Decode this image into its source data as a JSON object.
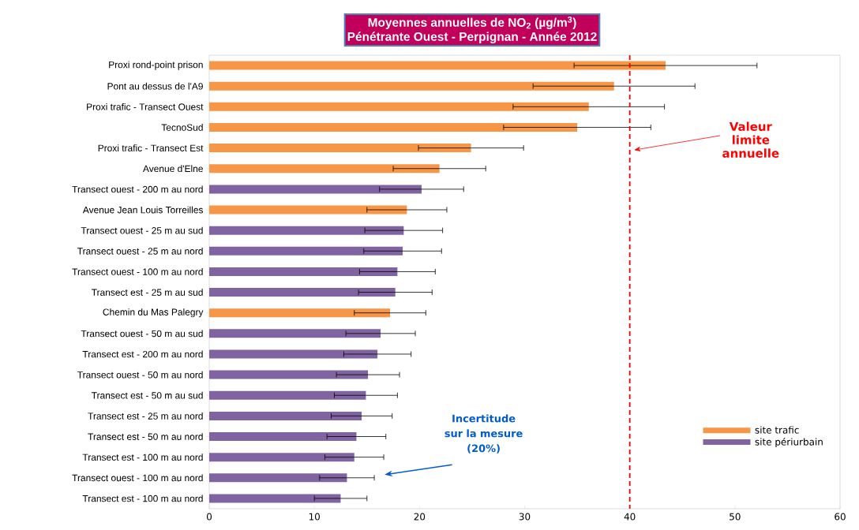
{
  "chart_data": {
    "type": "bar",
    "orientation": "horizontal",
    "stacked": true,
    "title": "Moyennes annuelles de NO$_{2}$  (µg/m$^{3}$)",
    "subtitle": "Pénétrante Ouest - Perpignan - Année 2012",
    "categories": [
      "Proxi rond-point prison",
      "Pont au dessus de l'A9",
      "Proxi trafic - Transect Ouest",
      "TecnoSud",
      "Proxi trafic - Transect Est",
      "Avenue d'Elne",
      "Transect ouest - 200 m au nord",
      "Avenue Jean Louis Torreilles",
      "Transect ouest - 25 m au sud",
      "Transect ouest - 25 m au nord",
      "Transect ouest - 100 m au nord",
      "Transect est - 25 m au sud",
      "Chemin du Mas Palegry",
      "Transect ouest - 50 m au sud",
      "Transect est - 200 m au nord",
      "Transect ouest - 50 m au nord",
      "Transect est - 50 m au sud",
      "Transect est - 25 m au nord",
      "Transect est - 50 m au nord",
      "Transect est - 100 m au nord",
      "Transect ouest - 100 m au nord",
      "Transect est - 100 m au nord"
    ],
    "series": [
      {
        "name": "site trafic",
        "color": "#f79646",
        "values": [
          43.4,
          38.5,
          36.1,
          35.0,
          24.9,
          21.9,
          null,
          18.8,
          null,
          null,
          null,
          null,
          17.2,
          null,
          null,
          null,
          null,
          null,
          null,
          null,
          null,
          null
        ],
        "errors": [
          8.7,
          7.7,
          7.2,
          7.0,
          5.0,
          4.4,
          null,
          3.8,
          null,
          null,
          null,
          null,
          3.4,
          null,
          null,
          null,
          null,
          null,
          null,
          null,
          null,
          null
        ]
      },
      {
        "name": "site périurbain",
        "color": "#8064a2",
        "values": [
          null,
          null,
          null,
          null,
          null,
          null,
          20.2,
          null,
          18.5,
          18.4,
          17.9,
          17.7,
          null,
          16.3,
          16.0,
          15.1,
          14.9,
          14.5,
          14.0,
          13.8,
          13.1,
          12.5
        ],
        "errors": [
          null,
          null,
          null,
          null,
          null,
          null,
          4.0,
          null,
          3.7,
          3.7,
          3.6,
          3.5,
          null,
          3.3,
          3.2,
          3.0,
          3.0,
          2.9,
          2.8,
          2.8,
          2.6,
          2.5
        ]
      }
    ],
    "xlim": [
      0,
      60
    ],
    "xticks": [
      0,
      10,
      20,
      30,
      40,
      50,
      60
    ],
    "ref_lines": [
      {
        "axis": "x",
        "value": 40,
        "label": "Valeur limite annuelle",
        "color": "#ff0000",
        "line_style": "dashed"
      }
    ],
    "annotations": [
      "Incertitude sur la mesure (20%)"
    ],
    "legend": "bottom right"
  }
}
